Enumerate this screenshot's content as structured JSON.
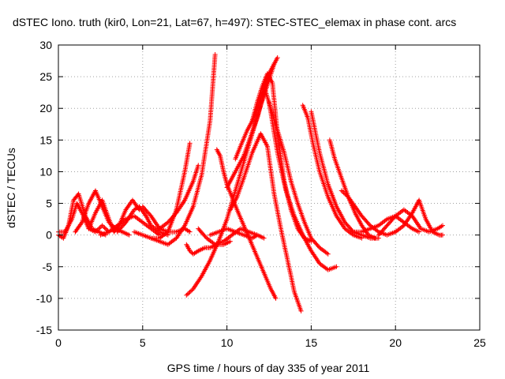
{
  "chart_data": {
    "type": "scatter",
    "title": "dSTEC Iono. truth (kir0, Lon=21, Lat=67, h=497): STEC-STEC_elemax in phase cont. arcs",
    "xlabel": "GPS time / hours of day 335 of year 2011",
    "ylabel": "dSTEC  / TECUs",
    "xlim": [
      0,
      25
    ],
    "ylim": [
      -15,
      30
    ],
    "xticks": [
      0,
      5,
      10,
      15,
      20,
      25
    ],
    "xtick_labels": [
      "0",
      "5",
      "10",
      "15",
      "20",
      "25"
    ],
    "yticks": [
      -15,
      -10,
      -5,
      0,
      5,
      10,
      15,
      20,
      25,
      30
    ],
    "ytick_labels": [
      "-15",
      "-10",
      "-5",
      "0",
      "5",
      "10",
      "15",
      "20",
      "25",
      "30"
    ],
    "grid": true,
    "marker": "+",
    "color": "#ff0000",
    "series": [
      {
        "x": [
          0.0,
          0.3,
          0.6,
          0.9,
          1.2,
          1.6,
          2.0,
          2.4,
          2.8
        ],
        "y": [
          0.0,
          -0.5,
          1.5,
          5.5,
          6.5,
          3.0,
          1.0,
          0.5,
          0.0
        ]
      },
      {
        "x": [
          0.0,
          0.4,
          0.8,
          1.1,
          1.4,
          1.8,
          2.2,
          2.6,
          3.0
        ],
        "y": [
          0.5,
          0.5,
          2.5,
          5.0,
          3.5,
          1.0,
          0.5,
          1.5,
          0.5
        ]
      },
      {
        "x": [
          1.0,
          1.4,
          1.8,
          2.2,
          2.6,
          3.0,
          3.4,
          3.8,
          4.2
        ],
        "y": [
          0.5,
          2.0,
          5.0,
          7.0,
          4.5,
          2.0,
          1.0,
          0.5,
          0.0
        ]
      },
      {
        "x": [
          1.8,
          2.2,
          2.6,
          3.0,
          3.3,
          3.6,
          4.0,
          4.4,
          4.8
        ],
        "y": [
          1.0,
          3.5,
          5.5,
          2.5,
          0.5,
          1.5,
          4.0,
          5.5,
          4.0
        ]
      },
      {
        "x": [
          2.5,
          3.0,
          3.5,
          4.0,
          4.5,
          5.0,
          5.5,
          6.0
        ],
        "y": [
          0.0,
          0.5,
          1.5,
          2.5,
          3.0,
          2.0,
          1.0,
          0.0
        ]
      },
      {
        "x": [
          3.5,
          4.0,
          4.5,
          4.8,
          5.2,
          5.5,
          6.0,
          6.5
        ],
        "y": [
          0.5,
          2.0,
          4.0,
          4.5,
          3.0,
          1.5,
          0.5,
          0.0
        ]
      },
      {
        "x": [
          4.5,
          5.0,
          5.5,
          6.0,
          6.5,
          7.0,
          7.5,
          7.8
        ],
        "y": [
          0.5,
          0.0,
          -0.5,
          -0.5,
          0.5,
          4.0,
          10.0,
          14.5
        ]
      },
      {
        "x": [
          5.0,
          5.5,
          6.0,
          6.5,
          7.0,
          7.5,
          7.8
        ],
        "y": [
          4.5,
          3.0,
          1.0,
          0.5,
          0.5,
          1.0,
          0.5
        ]
      },
      {
        "x": [
          5.5,
          6.0,
          6.5,
          7.0,
          7.5,
          8.0,
          8.5,
          9.0,
          9.3
        ],
        "y": [
          -0.5,
          -1.0,
          -1.5,
          -0.5,
          1.5,
          4.5,
          9.5,
          18.0,
          28.5
        ]
      },
      {
        "x": [
          6.0,
          6.5,
          7.0,
          7.5,
          8.0,
          8.3
        ],
        "y": [
          1.0,
          2.0,
          3.5,
          5.5,
          8.5,
          11.0
        ]
      },
      {
        "x": [
          7.6,
          7.8,
          8.0,
          8.3,
          8.7,
          9.0,
          9.4,
          9.8,
          10.2
        ],
        "y": [
          -1.5,
          -2.5,
          -3.0,
          -2.5,
          -2.0,
          -2.0,
          -1.5,
          -1.5,
          -1.0
        ]
      },
      {
        "x": [
          7.6,
          8.0,
          8.5,
          9.0,
          9.5,
          10.0,
          10.5,
          11.0,
          11.5,
          12.0,
          12.5,
          12.8
        ],
        "y": [
          -9.5,
          -8.5,
          -6.5,
          -4.0,
          -1.0,
          2.5,
          7.0,
          11.5,
          16.0,
          20.5,
          24.5,
          27.0
        ]
      },
      {
        "x": [
          9.4,
          9.6,
          9.8,
          10.0,
          10.3,
          10.6,
          11.0,
          11.4,
          11.8,
          12.2,
          12.6,
          12.9
        ],
        "y": [
          13.5,
          12.5,
          10.0,
          8.0,
          6.0,
          4.0,
          1.5,
          -1.0,
          -3.5,
          -6.0,
          -8.5,
          -10.0
        ]
      },
      {
        "x": [
          10.0,
          10.3,
          10.6,
          11.0,
          11.4,
          11.8,
          12.2,
          12.5,
          12.8,
          13.0
        ],
        "y": [
          7.5,
          9.0,
          10.5,
          12.5,
          15.5,
          18.5,
          22.5,
          25.5,
          27.0,
          28.0
        ]
      },
      {
        "x": [
          8.3,
          8.8,
          9.3,
          9.8,
          10.3,
          10.8,
          11.3,
          11.8,
          12.2
        ],
        "y": [
          1.0,
          -0.5,
          -1.5,
          -1.0,
          0.0,
          1.0,
          0.5,
          0.0,
          -0.5
        ]
      },
      {
        "x": [
          9.0,
          9.5,
          10.0,
          10.5,
          11.0,
          11.5,
          11.8
        ],
        "y": [
          0.0,
          0.5,
          1.0,
          0.5,
          0.0,
          -0.5,
          0.0
        ]
      },
      {
        "x": [
          10.5,
          10.8,
          11.2,
          11.5,
          11.8,
          12.1,
          12.4
        ],
        "y": [
          12.0,
          14.0,
          16.5,
          18.0,
          20.0,
          22.5,
          25.0
        ]
      },
      {
        "x": [
          10.2,
          10.6,
          11.0,
          11.5,
          12.0,
          12.4,
          12.8,
          13.2,
          13.6,
          14.0,
          14.4
        ],
        "y": [
          4.0,
          6.0,
          9.0,
          13.0,
          16.0,
          14.0,
          6.5,
          1.0,
          -4.0,
          -9.0,
          -12.0
        ]
      },
      {
        "x": [
          11.5,
          11.8,
          12.1,
          12.4,
          12.7,
          13.0,
          13.4,
          13.8,
          14.2,
          14.6,
          15.0
        ],
        "y": [
          18.0,
          21.0,
          23.5,
          25.5,
          24.0,
          16.0,
          8.5,
          4.0,
          1.0,
          -0.5,
          -1.0
        ]
      },
      {
        "x": [
          12.2,
          12.6,
          13.0,
          13.4,
          13.8,
          14.2,
          14.6,
          15.0,
          15.5,
          16.0
        ],
        "y": [
          23.5,
          20.0,
          16.5,
          13.0,
          8.5,
          5.0,
          2.0,
          -0.5,
          -2.0,
          -3.0
        ]
      },
      {
        "x": [
          12.5,
          13.0,
          13.5,
          14.0,
          14.5,
          15.0,
          15.5,
          16.0,
          16.5
        ],
        "y": [
          21.0,
          13.0,
          7.0,
          3.0,
          0.0,
          -2.5,
          -4.5,
          -5.5,
          -5.0
        ]
      },
      {
        "x": [
          14.5,
          14.8,
          15.1,
          15.5,
          16.0,
          16.5,
          17.0,
          17.5,
          18.0
        ],
        "y": [
          20.5,
          18.5,
          14.5,
          10.0,
          6.0,
          3.0,
          1.0,
          0.0,
          -0.5
        ]
      },
      {
        "x": [
          15.0,
          15.5,
          16.0,
          16.5,
          17.0,
          17.5,
          18.0,
          18.5,
          19.0
        ],
        "y": [
          19.5,
          13.0,
          8.0,
          4.5,
          2.0,
          0.5,
          0.0,
          -0.5,
          -0.5
        ]
      },
      {
        "x": [
          16.1,
          16.4,
          16.8,
          17.2,
          17.6,
          18.0,
          18.4,
          18.8
        ],
        "y": [
          15.0,
          12.0,
          9.0,
          6.0,
          3.5,
          1.5,
          0.0,
          -0.5
        ]
      },
      {
        "x": [
          16.8,
          17.2,
          17.6,
          18.0,
          18.5,
          19.0,
          19.5,
          20.0
        ],
        "y": [
          7.0,
          6.0,
          4.5,
          3.0,
          1.5,
          0.5,
          0.0,
          0.5
        ]
      },
      {
        "x": [
          17.5,
          18.0,
          18.5,
          19.0,
          19.5,
          20.0,
          20.5,
          21.0,
          21.4
        ],
        "y": [
          0.5,
          0.5,
          1.0,
          1.5,
          2.5,
          3.0,
          2.0,
          1.0,
          0.5
        ]
      },
      {
        "x": [
          19.0,
          19.5,
          20.0,
          20.5,
          21.0,
          21.5,
          22.0,
          22.5,
          22.8
        ],
        "y": [
          0.0,
          1.5,
          3.0,
          4.0,
          3.0,
          1.0,
          0.5,
          1.0,
          1.5
        ]
      },
      {
        "x": [
          20.0,
          20.5,
          21.0,
          21.4,
          21.8,
          22.2,
          22.6,
          22.8
        ],
        "y": [
          0.5,
          1.5,
          3.5,
          5.5,
          2.5,
          0.5,
          0.0,
          0.0
        ]
      }
    ]
  }
}
